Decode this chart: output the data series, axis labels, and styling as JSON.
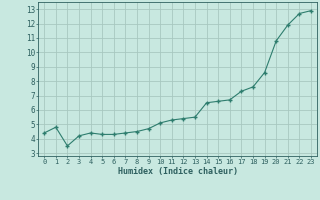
{
  "x": [
    0,
    1,
    2,
    3,
    4,
    5,
    6,
    7,
    8,
    9,
    10,
    11,
    12,
    13,
    14,
    15,
    16,
    17,
    18,
    19,
    20,
    21,
    22,
    23
  ],
  "y": [
    4.4,
    4.8,
    3.5,
    4.2,
    4.4,
    4.3,
    4.3,
    4.4,
    4.5,
    4.7,
    5.1,
    5.3,
    5.4,
    5.5,
    6.5,
    6.6,
    6.7,
    7.3,
    7.6,
    8.6,
    10.8,
    11.9,
    12.7,
    12.9
  ],
  "line_color": "#2e7d6e",
  "marker": "+",
  "bg_color": "#c8e8e0",
  "grid_color": "#a8c8c0",
  "xlabel": "Humidex (Indice chaleur)",
  "xlim": [
    -0.5,
    23.5
  ],
  "ylim": [
    2.8,
    13.5
  ],
  "yticks": [
    3,
    4,
    5,
    6,
    7,
    8,
    9,
    10,
    11,
    12,
    13
  ],
  "xticks": [
    0,
    1,
    2,
    3,
    4,
    5,
    6,
    7,
    8,
    9,
    10,
    11,
    12,
    13,
    14,
    15,
    16,
    17,
    18,
    19,
    20,
    21,
    22,
    23
  ],
  "tick_color": "#2e6060",
  "label_color": "#2e6060",
  "font": "monospace"
}
